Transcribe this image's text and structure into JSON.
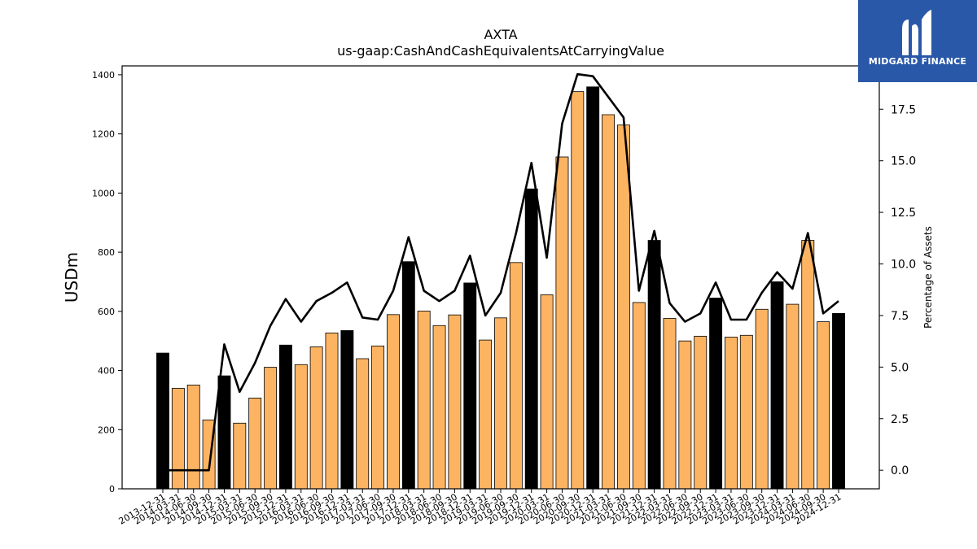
{
  "chart_data": {
    "type": "bar",
    "title": "AXTA",
    "subtitle": "us-gaap:CashAndCashEquivalentsAtCarryingValue",
    "ylabel": "USDm",
    "ylabel_right": "Percentage of Assets",
    "ylim": [
      0,
      1430
    ],
    "ylim_right": [
      -0.9,
      19.6
    ],
    "yticks": [
      0,
      200,
      400,
      600,
      800,
      1000,
      1200,
      1400
    ],
    "yticks_right": [
      "0.0",
      "2.5",
      "5.0",
      "7.5",
      "10.0",
      "12.5",
      "15.0",
      "17.5"
    ],
    "yticks_right_values": [
      0,
      2.5,
      5,
      7.5,
      10,
      12.5,
      15,
      17.5
    ],
    "grid": false,
    "colors": {
      "q4_bar": "#000000",
      "other_bar": "#fdb462",
      "bar_edge": "#000000",
      "line": "#000000"
    },
    "categories": [
      "2013-12-31",
      "2014-03-31",
      "2014-06-30",
      "2014-09-30",
      "2014-12-31",
      "2015-03-31",
      "2015-06-30",
      "2015-09-30",
      "2015-12-31",
      "2016-03-31",
      "2016-06-30",
      "2016-09-30",
      "2016-12-31",
      "2017-03-31",
      "2017-06-30",
      "2017-09-30",
      "2017-12-31",
      "2018-03-31",
      "2018-06-30",
      "2018-09-30",
      "2018-12-31",
      "2019-03-31",
      "2019-06-30",
      "2019-09-30",
      "2019-12-31",
      "2020-03-31",
      "2020-06-30",
      "2020-09-30",
      "2020-12-31",
      "2021-03-31",
      "2021-06-30",
      "2021-09-30",
      "2021-12-31",
      "2022-03-31",
      "2022-06-30",
      "2022-09-30",
      "2022-12-31",
      "2023-03-31",
      "2023-06-30",
      "2023-09-30",
      "2023-12-31",
      "2024-03-31",
      "2024-06-30",
      "2024-09-30",
      "2024-12-31"
    ],
    "series": [
      {
        "type": "bar",
        "values": [
          459,
          340,
          351,
          233,
          382,
          222,
          307,
          411,
          486,
          420,
          480,
          527,
          535,
          440,
          483,
          589,
          768,
          601,
          552,
          588,
          696,
          503,
          578,
          765,
          1014,
          656,
          1122,
          1343,
          1359,
          1265,
          1230,
          630,
          840,
          576,
          500,
          516,
          645,
          513,
          519,
          607,
          700,
          624,
          840,
          565,
          593
        ]
      },
      {
        "type": "line",
        "axis": "right",
        "values": [
          0,
          0,
          0,
          0,
          6.1,
          3.8,
          5.2,
          7.0,
          8.3,
          7.2,
          8.2,
          8.6,
          9.1,
          7.4,
          7.3,
          8.7,
          11.3,
          8.7,
          8.2,
          8.7,
          10.4,
          7.5,
          8.6,
          11.5,
          14.9,
          10.3,
          16.8,
          19.2,
          19.1,
          18.1,
          17.1,
          8.7,
          11.6,
          8.1,
          7.2,
          7.6,
          9.1,
          7.3,
          7.3,
          8.6,
          9.6,
          8.8,
          11.5,
          7.6,
          8.2
        ]
      }
    ]
  },
  "logo": {
    "text": "MIDGARD FINANCE",
    "icon": "midgard-logo-icon",
    "background": "#2a58a8"
  }
}
